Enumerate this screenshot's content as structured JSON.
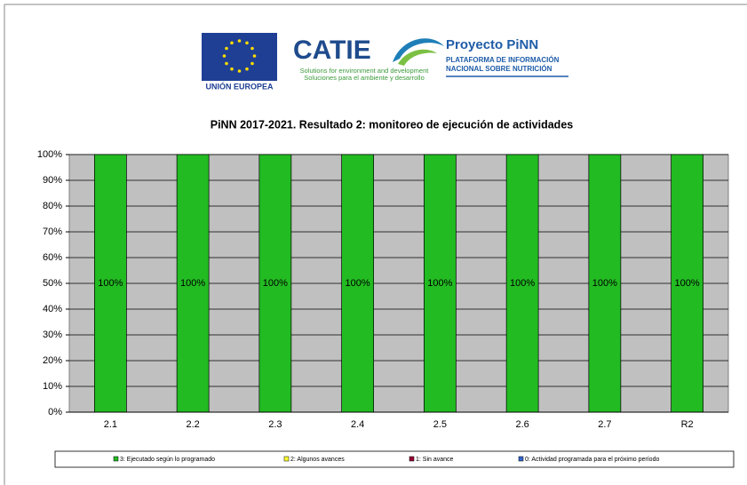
{
  "header": {
    "eu_label": "UNIÓN EUROPEA",
    "catie": "CATIE",
    "catie_tagline_en": "Solutions for environment and development",
    "catie_tagline_es": "Soluciones para el ambiente y desarrollo",
    "project_title": "Proyecto PiNN",
    "project_line1": "PLATAFORMA DE INFORMACIÓN",
    "project_line2": "NACIONAL SOBRE NUTRICIÓN"
  },
  "chart_data": {
    "type": "stacked_bar",
    "title": "PiNN 2017-2021. Resultado 2: monitoreo de ejecución de actividades",
    "categories": [
      "2.1",
      "2.2",
      "2.3",
      "2.4",
      "2.5",
      "2.6",
      "2.7",
      "R2"
    ],
    "series": [
      {
        "name": "3: Ejecutado según lo programado",
        "color": "#22bb22",
        "values": [
          100,
          100,
          100,
          100,
          100,
          100,
          100,
          100
        ],
        "value_labels": [
          "100%",
          "100%",
          "100%",
          "100%",
          "100%",
          "100%",
          "100%",
          "100%"
        ]
      },
      {
        "name": "2: Algunos avances",
        "color": "#ffff33",
        "values": [
          0,
          0,
          0,
          0,
          0,
          0,
          0,
          0
        ]
      },
      {
        "name": "1: Sin avance",
        "color": "#990033",
        "values": [
          0,
          0,
          0,
          0,
          0,
          0,
          0,
          0
        ]
      },
      {
        "name": "0: Actividad programada para el próximo período",
        "color": "#3366cc",
        "values": [
          0,
          0,
          0,
          0,
          0,
          0,
          0,
          0
        ]
      }
    ],
    "ylim": [
      0,
      100
    ],
    "yticks": [
      {
        "value": 0,
        "label": "0%"
      },
      {
        "value": 10,
        "label": "10%"
      },
      {
        "value": 20,
        "label": "20%"
      },
      {
        "value": 30,
        "label": "30%"
      },
      {
        "value": 40,
        "label": "40%"
      },
      {
        "value": 50,
        "label": "50%"
      },
      {
        "value": 60,
        "label": "60%"
      },
      {
        "value": 70,
        "label": "70%"
      },
      {
        "value": 80,
        "label": "80%"
      },
      {
        "value": 90,
        "label": "90%"
      },
      {
        "value": 100,
        "label": "100%"
      }
    ],
    "grid": true,
    "plot_background": "#c0c0c0",
    "legend": "bottom"
  }
}
